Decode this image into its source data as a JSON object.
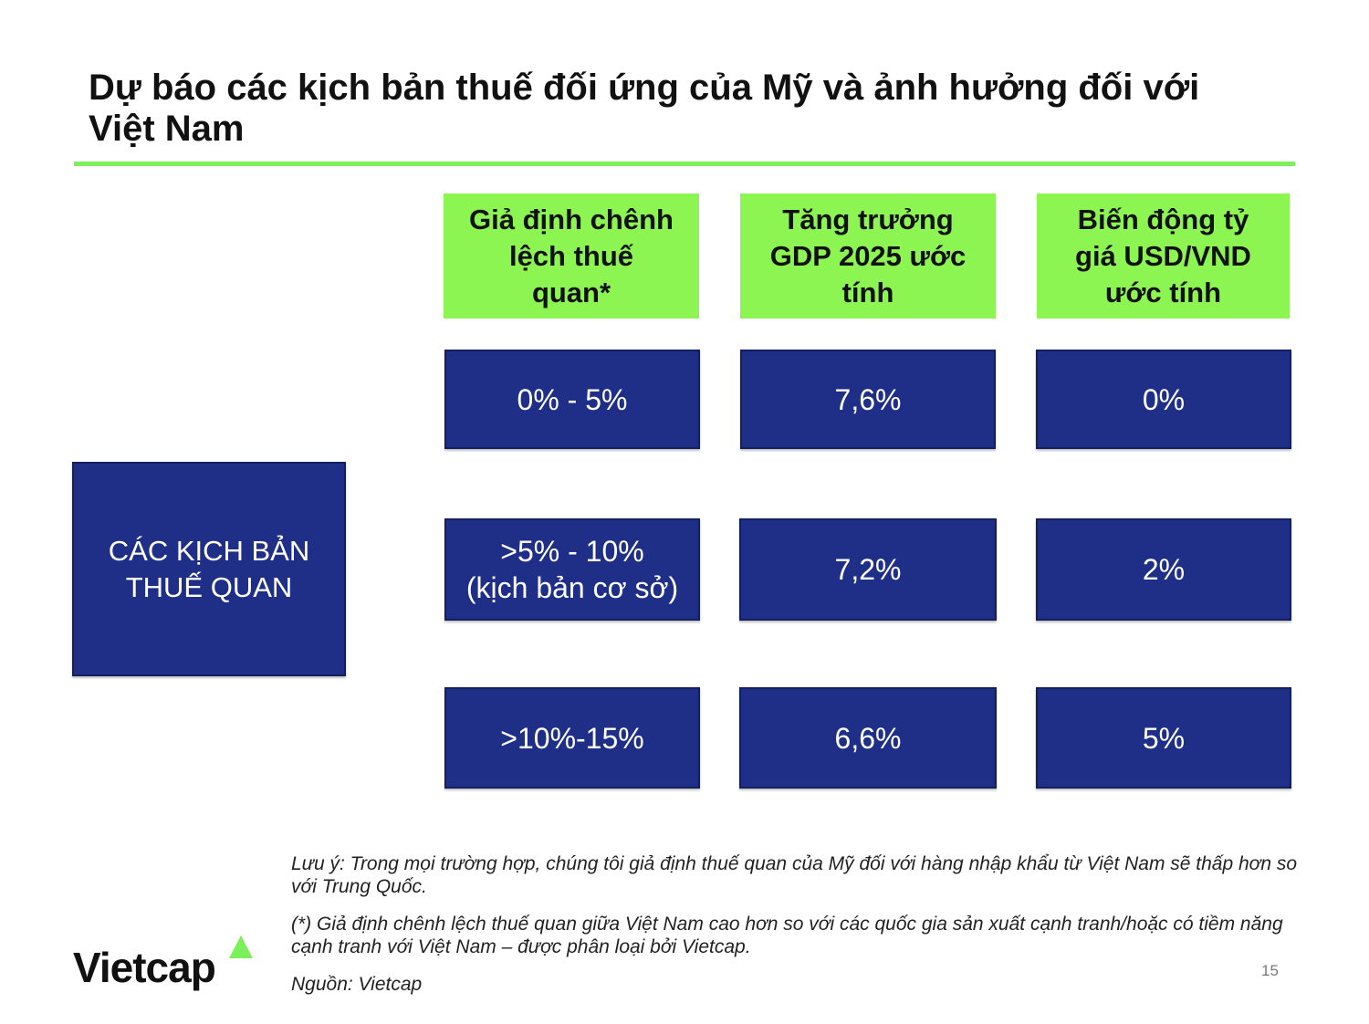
{
  "title": "Dự báo các kịch bản thuế đối ứng của Mỹ và ảnh hưởng đối với Việt Nam",
  "headers": [
    {
      "lines": [
        "Giả định chênh",
        "lệch thuế",
        "quan*"
      ]
    },
    {
      "lines": [
        "Tăng trưởng",
        "GDP 2025 ước",
        "tính"
      ]
    },
    {
      "lines": [
        "Biến động tỷ",
        "giá USD/VND",
        "ước tính"
      ]
    }
  ],
  "row_label": {
    "lines": [
      "CÁC KỊCH BẢN",
      "THUẾ QUAN"
    ]
  },
  "rows": [
    {
      "tariff": [
        "0% - 5%"
      ],
      "gdp": "7,6%",
      "fx": "0%"
    },
    {
      "tariff": [
        ">5% - 10%",
        "(kịch bản cơ sở)"
      ],
      "gdp": "7,2%",
      "fx": "2%"
    },
    {
      "tariff": [
        ">10%-15%"
      ],
      "gdp": "6,6%",
      "fx": "5%"
    }
  ],
  "notes": {
    "note1": "Lưu ý: Trong mọi trường hợp, chúng tôi giả định thuế quan của Mỹ đối với hàng nhập khẩu từ Việt Nam sẽ thấp hơn so với Trung Quốc.",
    "note2": "(*) Giả định chênh lệch thuế quan giữa Việt Nam cao hơn so với các quốc gia sản xuất cạnh tranh/hoặc có tiềm năng cạnh tranh với Việt Nam – được phân loại bởi Vietcap.",
    "source": "Nguồn: Vietcap"
  },
  "logo": {
    "text": "Vietcap",
    "accent_color": "#7CF05A"
  },
  "page_number": "15",
  "colors": {
    "header_bg": "#8DF552",
    "cell_bg": "#1F2E87",
    "rule": "#7CF05A"
  }
}
